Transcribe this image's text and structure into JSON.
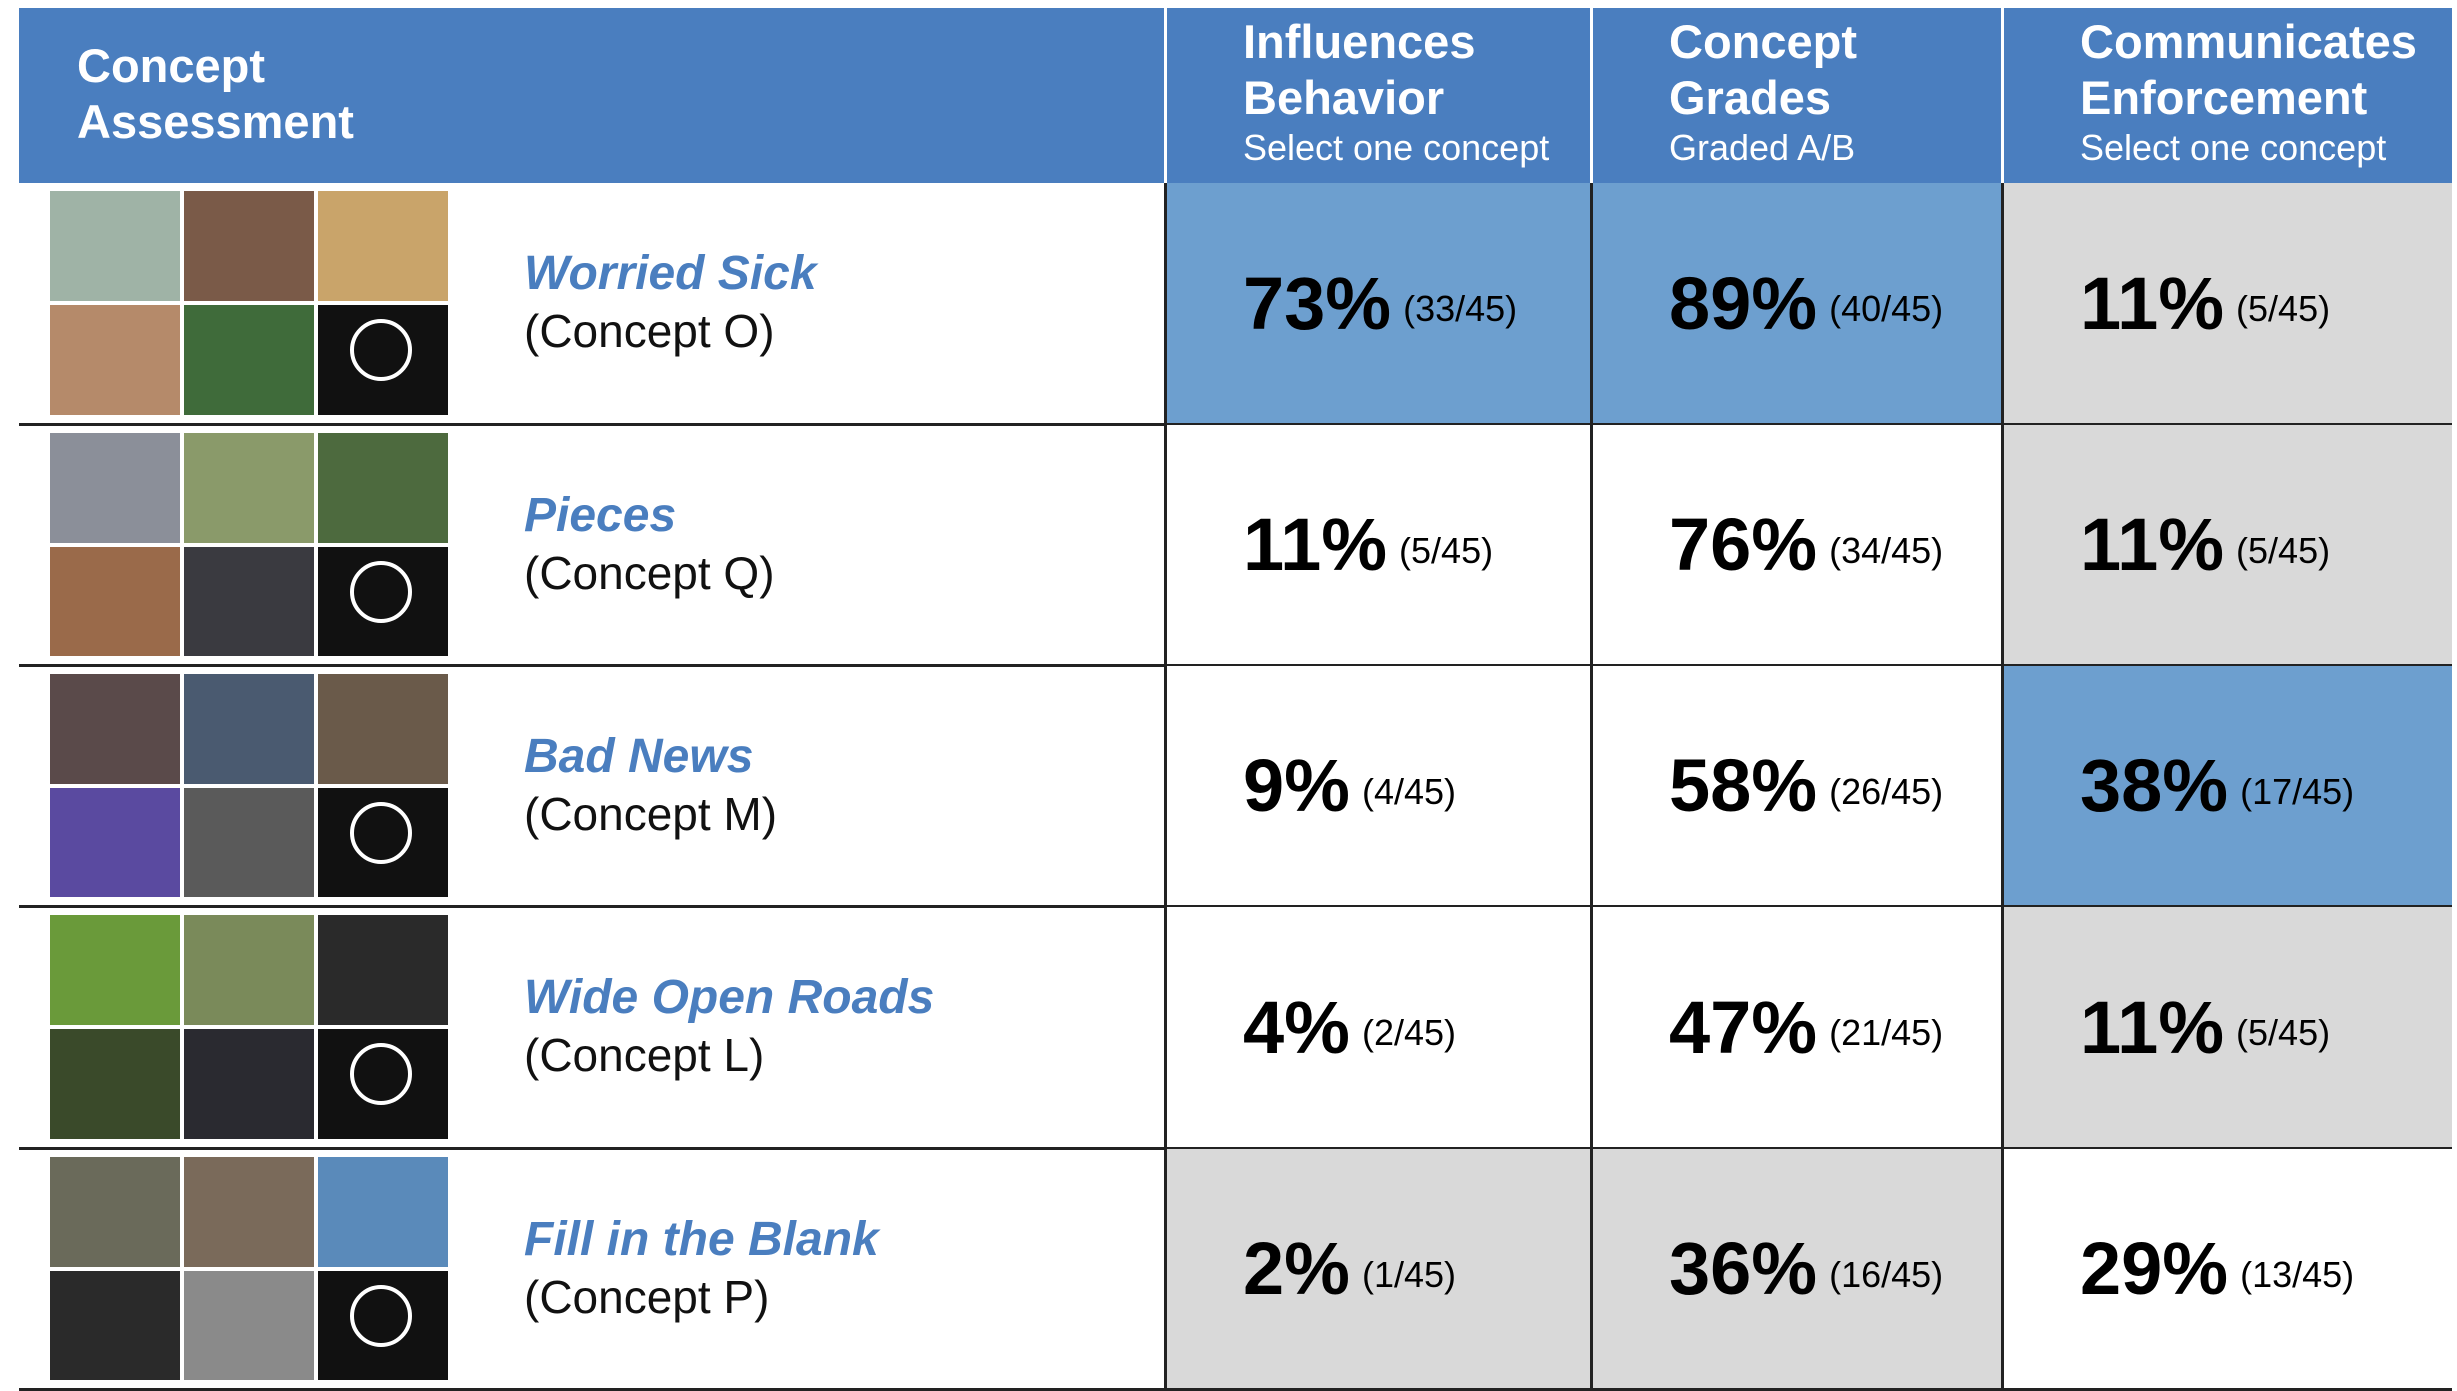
{
  "header": {
    "title": "Concept Assessment",
    "columns": [
      {
        "title": "Influences Behavior",
        "subtitle": "Select one concept"
      },
      {
        "title": "Concept Grades",
        "subtitle": "Graded A/B"
      },
      {
        "title": "Communicates Enforcement",
        "subtitle": "Select one concept"
      }
    ]
  },
  "rows": [
    {
      "name": "Worried Sick",
      "concept": "(Concept O)",
      "cells": [
        {
          "percent": "73%",
          "count": "(33/45)"
        },
        {
          "percent": "89%",
          "count": "(40/45)"
        },
        {
          "percent": "11%",
          "count": "(5/45)"
        }
      ]
    },
    {
      "name": "Pieces",
      "concept": "(Concept Q)",
      "cells": [
        {
          "percent": "11%",
          "count": "(5/45)"
        },
        {
          "percent": "76%",
          "count": "(34/45)"
        },
        {
          "percent": "11%",
          "count": "(5/45)"
        }
      ]
    },
    {
      "name": "Bad News",
      "concept": "(Concept M)",
      "cells": [
        {
          "percent": "9%",
          "count": "(4/45)"
        },
        {
          "percent": "58%",
          "count": "(26/45)"
        },
        {
          "percent": "38%",
          "count": "(17/45)"
        }
      ]
    },
    {
      "name": "Wide Open Roads",
      "concept": "(Concept L)",
      "cells": [
        {
          "percent": "4%",
          "count": "(2/45)"
        },
        {
          "percent": "47%",
          "count": "(21/45)"
        },
        {
          "percent": "11%",
          "count": "(5/45)"
        }
      ]
    },
    {
      "name": "Fill in the Blank",
      "concept": "(Concept P)",
      "cells": [
        {
          "percent": "2%",
          "count": "(1/45)"
        },
        {
          "percent": "36%",
          "count": "(16/45)"
        },
        {
          "percent": "29%",
          "count": "(13/45)"
        }
      ]
    }
  ]
}
